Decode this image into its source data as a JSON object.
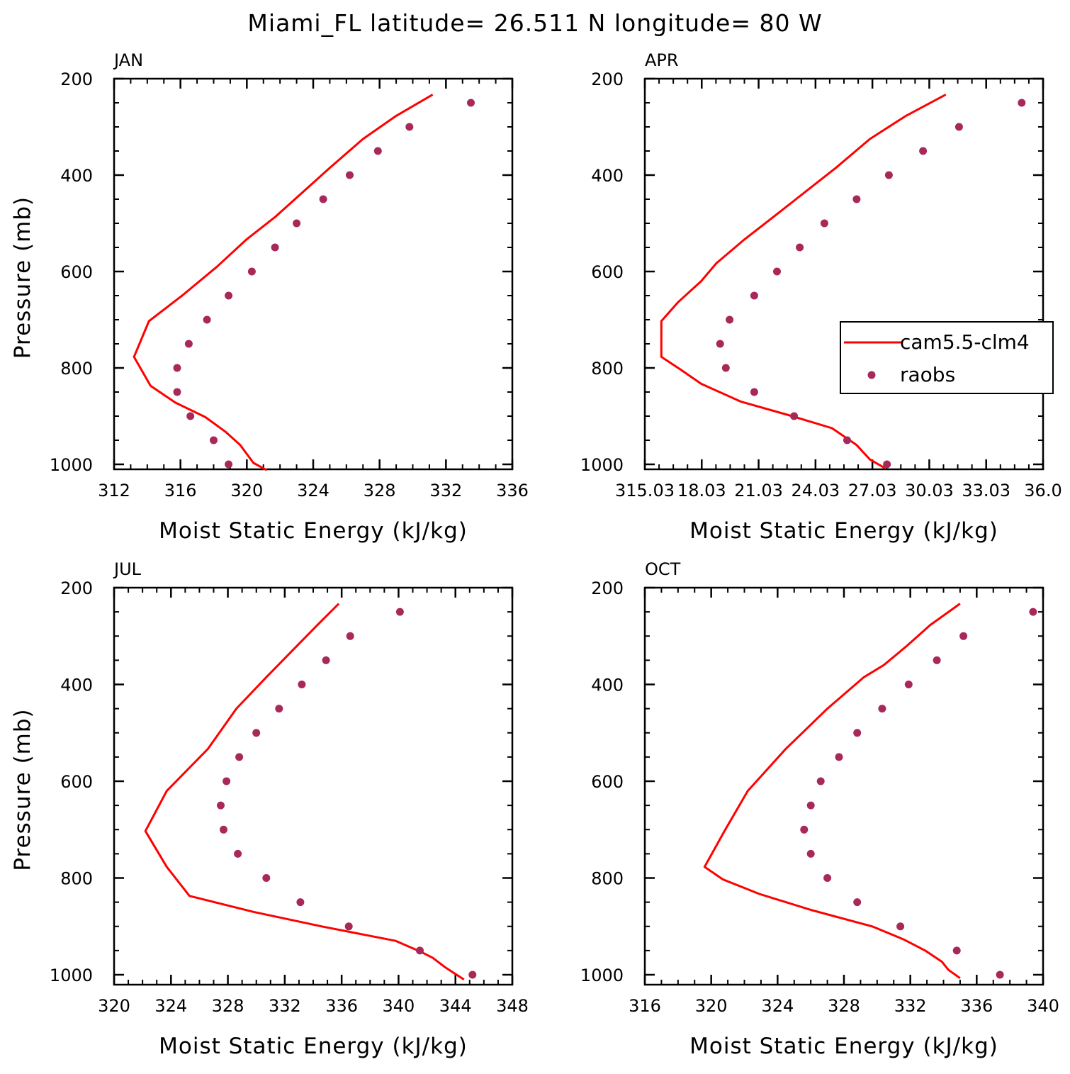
{
  "title": "Miami_FL  latitude= 26.511 N longitude= 80 W",
  "colors": {
    "model": "#ff0000",
    "obs": "#a8285a",
    "axes": "#000000"
  },
  "legend": {
    "model_label": "cam5.5-clm4",
    "obs_label": "raobs",
    "placement": "inside APR panel, right"
  },
  "chart_data": [
    {
      "type": "line",
      "panel": "JAN",
      "xlabel": "Moist Static Energy (kJ/kg)",
      "ylabel": "Pressure (mb)",
      "xlim": [
        312,
        336
      ],
      "ylim": [
        1000,
        200
      ],
      "x_tick_labels": [
        "312",
        "316",
        "320",
        "324",
        "328",
        "332",
        "336"
      ],
      "y_tick_labels": [
        "200",
        "400",
        "600",
        "800",
        "1000"
      ],
      "series": [
        {
          "name": "cam5.5-clm4",
          "kind": "line",
          "points": [
            [
              331.2,
              233
            ],
            [
              329.0,
              277
            ],
            [
              327.0,
              325
            ],
            [
              325.0,
              385
            ],
            [
              322.9,
              450
            ],
            [
              321.7,
              487
            ],
            [
              320.0,
              533
            ],
            [
              318.2,
              590
            ],
            [
              316.1,
              650
            ],
            [
              314.1,
              703
            ],
            [
              313.2,
              777
            ],
            [
              314.2,
              837
            ],
            [
              315.7,
              872
            ],
            [
              317.5,
              902
            ],
            [
              318.7,
              932
            ],
            [
              319.6,
              960
            ],
            [
              320.4,
              997
            ],
            [
              321.2,
              1012
            ]
          ]
        },
        {
          "name": "raobs",
          "kind": "points",
          "points": [
            [
              333.5,
              250
            ],
            [
              329.8,
              300
            ],
            [
              327.9,
              350
            ],
            [
              326.2,
              400
            ],
            [
              324.6,
              450
            ],
            [
              323.0,
              500
            ],
            [
              321.7,
              550
            ],
            [
              320.3,
              600
            ],
            [
              318.9,
              650
            ],
            [
              317.6,
              700
            ],
            [
              316.5,
              750
            ],
            [
              315.8,
              800
            ],
            [
              315.8,
              850
            ],
            [
              316.6,
              900
            ],
            [
              318.0,
              950
            ],
            [
              318.9,
              1000
            ]
          ]
        }
      ]
    },
    {
      "type": "line",
      "panel": "APR",
      "xlabel": "Moist Static Energy (kJ/kg)",
      "ylabel": "",
      "xlim": [
        315.03,
        336.03
      ],
      "ylim": [
        1000,
        200
      ],
      "x_tick_labels": [
        "315.03",
        "18.03",
        "21.03",
        "24.03",
        "27.03",
        "30.03",
        "33.03",
        "36.0"
      ],
      "y_tick_labels": [
        "200",
        "400",
        "600",
        "800",
        "1000"
      ],
      "series": [
        {
          "name": "cam5.5-clm4",
          "kind": "line",
          "points": [
            [
              330.9,
              233
            ],
            [
              328.8,
              277
            ],
            [
              326.9,
              325
            ],
            [
              325.1,
              385
            ],
            [
              323.0,
              450
            ],
            [
              321.8,
              487
            ],
            [
              320.3,
              533
            ],
            [
              318.8,
              583
            ],
            [
              318.0,
              620
            ],
            [
              316.8,
              663
            ],
            [
              315.9,
              703
            ],
            [
              315.9,
              777
            ],
            [
              316.9,
              803
            ],
            [
              318.0,
              833
            ],
            [
              320.1,
              870
            ],
            [
              322.8,
              900
            ],
            [
              324.9,
              925
            ],
            [
              326.2,
              960
            ],
            [
              326.9,
              990
            ],
            [
              327.7,
              1008
            ]
          ]
        },
        {
          "name": "raobs",
          "kind": "points",
          "points": [
            [
              334.9,
              250
            ],
            [
              331.6,
              300
            ],
            [
              329.7,
              350
            ],
            [
              327.9,
              400
            ],
            [
              326.2,
              450
            ],
            [
              324.5,
              500
            ],
            [
              323.2,
              550
            ],
            [
              322.0,
              600
            ],
            [
              320.8,
              650
            ],
            [
              319.5,
              700
            ],
            [
              319.0,
              750
            ],
            [
              319.3,
              800
            ],
            [
              320.8,
              850
            ],
            [
              322.9,
              900
            ],
            [
              325.7,
              950
            ],
            [
              327.8,
              1000
            ]
          ]
        }
      ]
    },
    {
      "type": "line",
      "panel": "JUL",
      "xlabel": "Moist Static Energy (kJ/kg)",
      "ylabel": "Pressure (mb)",
      "xlim": [
        320,
        348
      ],
      "ylim": [
        1000,
        200
      ],
      "x_tick_labels": [
        "320",
        "324",
        "328",
        "332",
        "336",
        "340",
        "344",
        "348"
      ],
      "y_tick_labels": [
        "200",
        "400",
        "600",
        "800",
        "1000"
      ],
      "series": [
        {
          "name": "cam5.5-clm4",
          "kind": "line",
          "points": [
            [
              335.8,
              233
            ],
            [
              334.3,
              277
            ],
            [
              332.7,
              325
            ],
            [
              330.7,
              385
            ],
            [
              328.6,
              450
            ],
            [
              326.6,
              533
            ],
            [
              323.7,
              620
            ],
            [
              322.2,
              703
            ],
            [
              323.7,
              777
            ],
            [
              325.3,
              837
            ],
            [
              329.8,
              870
            ],
            [
              334.6,
              900
            ],
            [
              339.8,
              930
            ],
            [
              341.6,
              953
            ],
            [
              342.4,
              965
            ],
            [
              343.3,
              985
            ],
            [
              344.6,
              1010
            ]
          ]
        },
        {
          "name": "raobs",
          "kind": "points",
          "points": [
            [
              340.1,
              250
            ],
            [
              336.6,
              300
            ],
            [
              334.9,
              350
            ],
            [
              333.2,
              400
            ],
            [
              331.6,
              450
            ],
            [
              330.0,
              500
            ],
            [
              328.8,
              550
            ],
            [
              327.9,
              600
            ],
            [
              327.5,
              650
            ],
            [
              327.7,
              700
            ],
            [
              328.7,
              750
            ],
            [
              330.7,
              800
            ],
            [
              333.1,
              850
            ],
            [
              336.5,
              900
            ],
            [
              341.5,
              950
            ],
            [
              345.2,
              1000
            ]
          ]
        }
      ]
    },
    {
      "type": "line",
      "panel": "OCT",
      "xlabel": "Moist Static Energy (kJ/kg)",
      "ylabel": "",
      "xlim": [
        316,
        340
      ],
      "ylim": [
        1000,
        200
      ],
      "x_tick_labels": [
        "316",
        "320",
        "324",
        "328",
        "332",
        "336",
        "340"
      ],
      "y_tick_labels": [
        "200",
        "400",
        "600",
        "800",
        "1000"
      ],
      "series": [
        {
          "name": "cam5.5-clm4",
          "kind": "line",
          "points": [
            [
              335.0,
              233
            ],
            [
              333.2,
              277
            ],
            [
              331.8,
              320
            ],
            [
              330.4,
              360
            ],
            [
              329.2,
              385
            ],
            [
              327.0,
              450
            ],
            [
              324.5,
              533
            ],
            [
              322.2,
              620
            ],
            [
              320.8,
              703
            ],
            [
              319.6,
              777
            ],
            [
              320.7,
              803
            ],
            [
              322.9,
              833
            ],
            [
              326.0,
              866
            ],
            [
              329.7,
              900
            ],
            [
              331.6,
              927
            ],
            [
              332.9,
              950
            ],
            [
              333.9,
              973
            ],
            [
              334.3,
              990
            ],
            [
              335.0,
              1007
            ]
          ]
        },
        {
          "name": "raobs",
          "kind": "points",
          "points": [
            [
              339.4,
              250
            ],
            [
              335.2,
              300
            ],
            [
              333.6,
              350
            ],
            [
              331.9,
              400
            ],
            [
              330.3,
              450
            ],
            [
              328.8,
              500
            ],
            [
              327.7,
              550
            ],
            [
              326.6,
              600
            ],
            [
              326.0,
              650
            ],
            [
              325.6,
              700
            ],
            [
              326.0,
              750
            ],
            [
              327.0,
              800
            ],
            [
              328.8,
              850
            ],
            [
              331.4,
              900
            ],
            [
              334.8,
              950
            ],
            [
              337.4,
              1000
            ]
          ]
        }
      ]
    }
  ]
}
